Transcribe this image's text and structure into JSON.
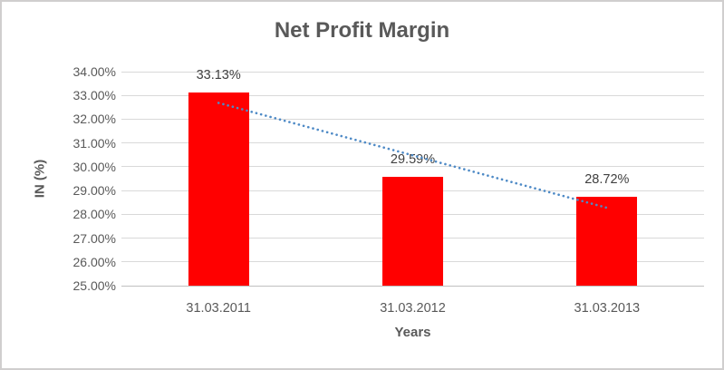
{
  "chart_data": {
    "type": "bar",
    "title": "Net Profit Margin",
    "categories": [
      "31.03.2011",
      "31.03.2012",
      "31.03.2013"
    ],
    "values": [
      33.13,
      29.59,
      28.72
    ],
    "data_labels": [
      "33.13%",
      "29.59%",
      "28.72%"
    ],
    "xlabel": "Years",
    "ylabel": "IN (%)",
    "ylim": [
      25,
      34
    ],
    "ytick_step": 1,
    "ytick_labels": [
      "34.00%",
      "33.00%",
      "32.00%",
      "31.00%",
      "30.00%",
      "29.00%",
      "28.00%",
      "27.00%",
      "26.00%",
      "25.00%"
    ],
    "grid": true,
    "legend": false,
    "trendline": {
      "fit": "linear",
      "style": "dotted",
      "color": "#4E8AC6"
    },
    "colors": {
      "bar": "#FF0000",
      "trendline": "#4E8AC6",
      "gridline": "#D9D9D9",
      "axis_line": "#BFBFBF",
      "title_text": "#595959",
      "tick_text": "#595959",
      "data_label_text": "#404040",
      "border": "#D0CECE"
    }
  }
}
